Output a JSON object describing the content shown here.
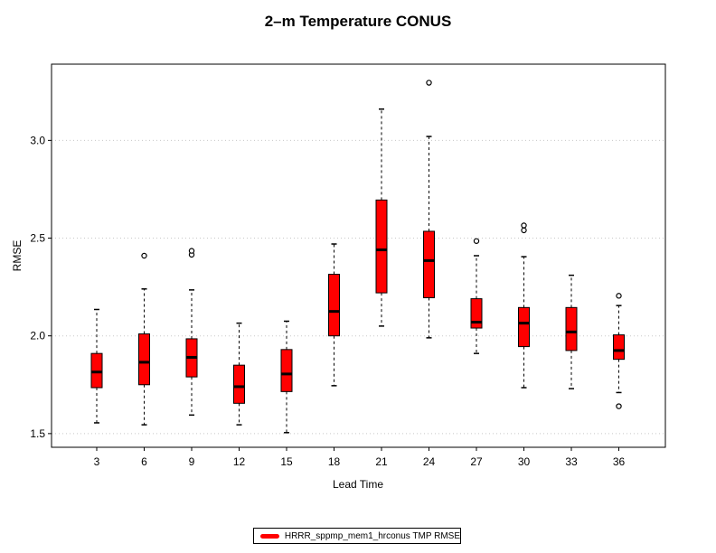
{
  "chart_data": {
    "type": "boxplot",
    "title": "2–m Temperature CONUS",
    "xlabel": "Lead Time",
    "ylabel": "RMSE",
    "ylim": [
      1.43,
      3.39
    ],
    "yticks": [
      "1.5",
      "2.0",
      "2.5",
      "3.0"
    ],
    "grid": "horizontal dotted",
    "legend_position": "bottom-center",
    "box_color": "#ff0000",
    "series": [
      {
        "name": "HRRR_sppmp_mem1_hrconus TMP RMSE",
        "categories": [
          "3",
          "6",
          "9",
          "12",
          "15",
          "18",
          "21",
          "24",
          "27",
          "30",
          "33",
          "36"
        ],
        "boxes": [
          {
            "min": 1.555,
            "q1": 1.735,
            "median": 1.815,
            "q3": 1.91,
            "max": 2.135,
            "outliers": []
          },
          {
            "min": 1.545,
            "q1": 1.75,
            "median": 1.865,
            "q3": 2.01,
            "max": 2.24,
            "outliers": [
              2.41
            ]
          },
          {
            "min": 1.595,
            "q1": 1.79,
            "median": 1.89,
            "q3": 1.985,
            "max": 2.235,
            "outliers": [
              2.415,
              2.435
            ]
          },
          {
            "min": 1.545,
            "q1": 1.655,
            "median": 1.74,
            "q3": 1.85,
            "max": 2.065,
            "outliers": []
          },
          {
            "min": 1.505,
            "q1": 1.715,
            "median": 1.805,
            "q3": 1.93,
            "max": 2.075,
            "outliers": []
          },
          {
            "min": 1.745,
            "q1": 2.0,
            "median": 2.125,
            "q3": 2.315,
            "max": 2.47,
            "outliers": []
          },
          {
            "min": 2.05,
            "q1": 2.22,
            "median": 2.44,
            "q3": 2.695,
            "max": 3.16,
            "outliers": []
          },
          {
            "min": 1.99,
            "q1": 2.195,
            "median": 2.385,
            "q3": 2.535,
            "max": 3.02,
            "outliers": [
              3.295
            ]
          },
          {
            "min": 1.91,
            "q1": 2.04,
            "median": 2.07,
            "q3": 2.19,
            "max": 2.41,
            "outliers": [
              2.485
            ]
          },
          {
            "min": 1.735,
            "q1": 1.945,
            "median": 2.065,
            "q3": 2.145,
            "max": 2.405,
            "outliers": [
              2.54,
              2.565
            ]
          },
          {
            "min": 1.73,
            "q1": 1.925,
            "median": 2.02,
            "q3": 2.145,
            "max": 2.31,
            "outliers": []
          },
          {
            "min": 1.71,
            "q1": 1.88,
            "median": 1.925,
            "q3": 2.005,
            "max": 2.155,
            "outliers": [
              1.64,
              2.205
            ]
          }
        ]
      }
    ]
  }
}
